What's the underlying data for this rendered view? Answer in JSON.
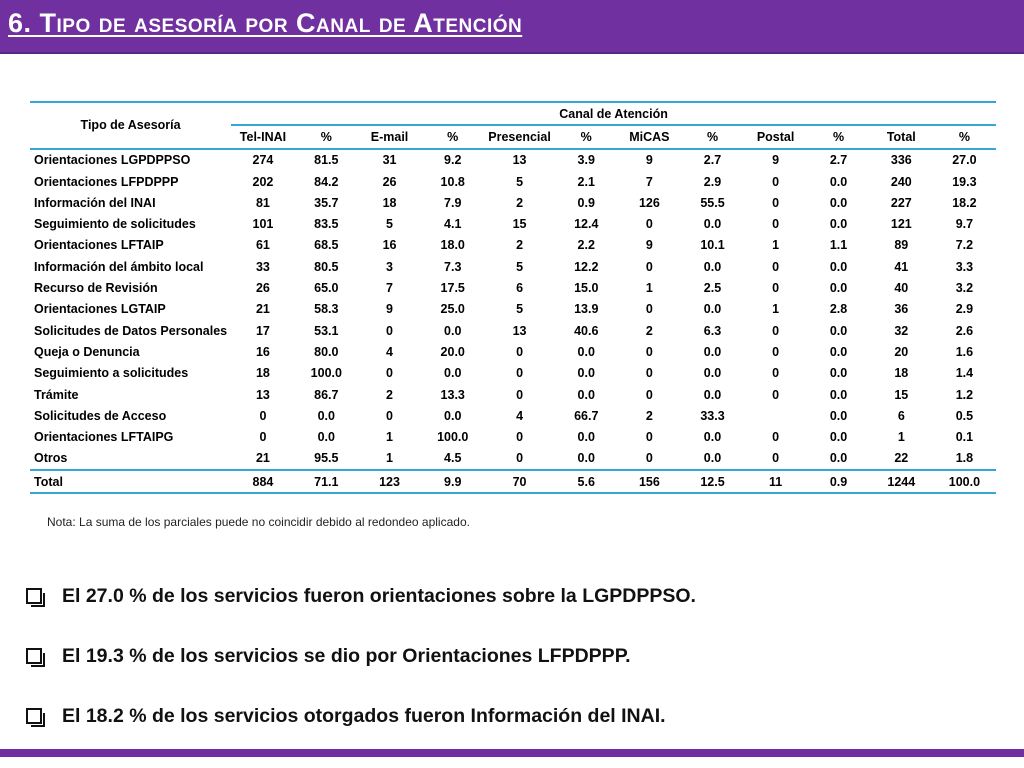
{
  "slide": {
    "title": "6. Tipo de asesoría por Canal de Atención",
    "accent_color": "#7030a0",
    "rule_color": "#33a7d8"
  },
  "table": {
    "row_header": "Tipo de Asesoría",
    "group_header": "Canal de Atención",
    "columns": [
      "Tel-INAI",
      "%",
      "E-mail",
      "%",
      "Presencial",
      "%",
      "MiCAS",
      "%",
      "Postal",
      "%",
      "Total",
      "%"
    ],
    "rows": [
      {
        "label": "Orientaciones LGPDPPSO",
        "cells": [
          "274",
          "81.5",
          "31",
          "9.2",
          "13",
          "3.9",
          "9",
          "2.7",
          "9",
          "2.7",
          "336",
          "27.0"
        ]
      },
      {
        "label": "Orientaciones LFPDPPP",
        "cells": [
          "202",
          "84.2",
          "26",
          "10.8",
          "5",
          "2.1",
          "7",
          "2.9",
          "0",
          "0.0",
          "240",
          "19.3"
        ]
      },
      {
        "label": "Información del INAI",
        "cells": [
          "81",
          "35.7",
          "18",
          "7.9",
          "2",
          "0.9",
          "126",
          "55.5",
          "0",
          "0.0",
          "227",
          "18.2"
        ]
      },
      {
        "label": "Seguimiento de solicitudes",
        "cells": [
          "101",
          "83.5",
          "5",
          "4.1",
          "15",
          "12.4",
          "0",
          "0.0",
          "0",
          "0.0",
          "121",
          "9.7"
        ]
      },
      {
        "label": "Orientaciones LFTAIP",
        "cells": [
          "61",
          "68.5",
          "16",
          "18.0",
          "2",
          "2.2",
          "9",
          "10.1",
          "1",
          "1.1",
          "89",
          "7.2"
        ]
      },
      {
        "label": "Información del ámbito local",
        "cells": [
          "33",
          "80.5",
          "3",
          "7.3",
          "5",
          "12.2",
          "0",
          "0.0",
          "0",
          "0.0",
          "41",
          "3.3"
        ]
      },
      {
        "label": "Recurso de Revisión",
        "cells": [
          "26",
          "65.0",
          "7",
          "17.5",
          "6",
          "15.0",
          "1",
          "2.5",
          "0",
          "0.0",
          "40",
          "3.2"
        ]
      },
      {
        "label": "Orientaciones LGTAIP",
        "cells": [
          "21",
          "58.3",
          "9",
          "25.0",
          "5",
          "13.9",
          "0",
          "0.0",
          "1",
          "2.8",
          "36",
          "2.9"
        ]
      },
      {
        "label": "Solicitudes de Datos Personales",
        "cells": [
          "17",
          "53.1",
          "0",
          "0.0",
          "13",
          "40.6",
          "2",
          "6.3",
          "0",
          "0.0",
          "32",
          "2.6"
        ]
      },
      {
        "label": "Queja o Denuncia",
        "cells": [
          "16",
          "80.0",
          "4",
          "20.0",
          "0",
          "0.0",
          "0",
          "0.0",
          "0",
          "0.0",
          "20",
          "1.6"
        ]
      },
      {
        "label": "Seguimiento a solicitudes",
        "cells": [
          "18",
          "100.0",
          "0",
          "0.0",
          "0",
          "0.0",
          "0",
          "0.0",
          "0",
          "0.0",
          "18",
          "1.4"
        ]
      },
      {
        "label": "Trámite",
        "cells": [
          "13",
          "86.7",
          "2",
          "13.3",
          "0",
          "0.0",
          "0",
          "0.0",
          "0",
          "0.0",
          "15",
          "1.2"
        ]
      },
      {
        "label": "Solicitudes de Acceso",
        "cells": [
          "0",
          "0.0",
          "0",
          "0.0",
          "4",
          "66.7",
          "2",
          "33.3",
          "",
          "0.0",
          "6",
          "0.5"
        ]
      },
      {
        "label": "Orientaciones LFTAIPG",
        "cells": [
          "0",
          "0.0",
          "1",
          "100.0",
          "0",
          "0.0",
          "0",
          "0.0",
          "0",
          "0.0",
          "1",
          "0.1"
        ]
      },
      {
        "label": "Otros",
        "cells": [
          "21",
          "95.5",
          "1",
          "4.5",
          "0",
          "0.0",
          "0",
          "0.0",
          "0",
          "0.0",
          "22",
          "1.8"
        ]
      }
    ],
    "total_row": {
      "label": "Total",
      "cells": [
        "884",
        "71.1",
        "123",
        "9.9",
        "70",
        "5.6",
        "156",
        "12.5",
        "11",
        "0.9",
        "1244",
        "100.0"
      ]
    }
  },
  "note": "Nota: La suma de los parciales puede no coincidir debido al redondeo aplicado.",
  "bullets": [
    "El 27.0 % de los servicios fueron orientaciones sobre la LGPDPPSO.",
    "El 19.3 % de los servicios se dio por Orientaciones LFPDPPP.",
    "El 18.2 % de los servicios otorgados fueron Información del INAI."
  ]
}
